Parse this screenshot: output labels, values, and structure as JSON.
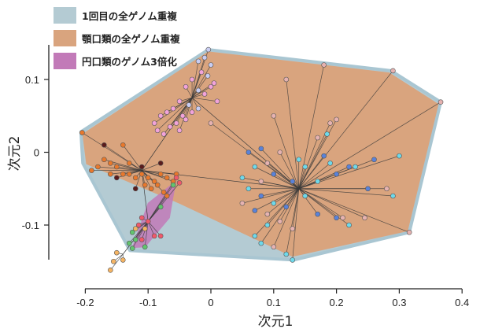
{
  "chart_data": {
    "type": "scatter",
    "xlabel": "次元1",
    "ylabel": "次元2",
    "xlim": [
      -0.2,
      0.4
    ],
    "ylim": [
      -0.15,
      0.15
    ],
    "xticks": [
      "-0.2",
      "-0.1",
      "0",
      "0.1",
      "0.2",
      "0.3",
      "0.4"
    ],
    "xtick_values": [
      -0.2,
      -0.1,
      0,
      0.1,
      0.2,
      0.3,
      0.4
    ],
    "yticks": [
      "0.1",
      "0",
      "-0.1"
    ],
    "ytick_values": [
      0.1,
      0,
      -0.1
    ],
    "grid": false,
    "legend_placement": "top-left",
    "legend": [
      {
        "label": "1回目の全ゲノム重複",
        "color": "#b4cbd3"
      },
      {
        "label": "顎口類の全ゲノム重複",
        "color": "#d9a47e"
      },
      {
        "label": "円口類のゲノム3倍化",
        "color": "#c27ab8"
      }
    ],
    "hulls": [
      {
        "name": "1回目の全ゲノム重複",
        "fill": "#b4cbd3",
        "stroke": "#a9c6d2",
        "vertices": [
          [
            -0.004,
            0.141
          ],
          [
            0.287,
            0.112
          ],
          [
            0.366,
            0.069
          ],
          [
            0.316,
            -0.11
          ],
          [
            0.132,
            -0.148
          ],
          [
            -0.129,
            -0.135
          ],
          [
            -0.204,
            -0.015
          ],
          [
            -0.207,
            0.028
          ]
        ]
      },
      {
        "name": "顎口類の全ゲノム重複",
        "fill": "#d9a47e",
        "stroke": "#d9a47e",
        "vertices": [
          [
            -0.004,
            0.138
          ],
          [
            0.284,
            0.109
          ],
          [
            0.362,
            0.066
          ],
          [
            0.313,
            -0.108
          ],
          [
            0.13,
            -0.143
          ],
          [
            -0.05,
            -0.07
          ],
          [
            -0.198,
            -0.016
          ],
          [
            -0.204,
            0.025
          ]
        ]
      },
      {
        "name": "円口類のゲノム3倍化",
        "fill": "#c27ab8",
        "stroke": "#c27ab8",
        "vertices": [
          [
            -0.056,
            -0.04
          ],
          [
            -0.066,
            -0.09
          ],
          [
            -0.105,
            -0.13
          ],
          [
            -0.125,
            -0.131
          ],
          [
            -0.1,
            -0.07
          ]
        ]
      }
    ],
    "colors": {
      "orange": "#e8782c",
      "maroon": "#5a1c1c",
      "red": "#f0596a",
      "green": "#62c46e",
      "lightorange": "#f5b463",
      "pink": "#f2a3d9",
      "lavender": "#c9cdf2",
      "rose": "#e6b2b0",
      "blue": "#5a82d9",
      "cyan": "#6fd9ea"
    },
    "clusters": [
      {
        "hub": [
          -0.03,
          0.075
        ],
        "points": [
          [
            -0.004,
            0.141,
            "lavender"
          ],
          [
            -0.01,
            0.13,
            "lavender"
          ],
          [
            0.0,
            0.12,
            "lavender"
          ],
          [
            -0.02,
            0.125,
            "lavender"
          ],
          [
            -0.005,
            0.105,
            "lavender"
          ],
          [
            0.005,
            0.095,
            "pink"
          ],
          [
            -0.015,
            0.11,
            "pink"
          ],
          [
            -0.03,
            0.1,
            "pink"
          ],
          [
            -0.04,
            0.09,
            "pink"
          ],
          [
            -0.02,
            0.085,
            "lavender"
          ],
          [
            -0.01,
            0.08,
            "pink"
          ],
          [
            -0.05,
            0.07,
            "pink"
          ],
          [
            -0.06,
            0.06,
            "pink"
          ],
          [
            -0.07,
            0.055,
            "pink"
          ],
          [
            -0.08,
            0.05,
            "pink"
          ],
          [
            -0.09,
            0.04,
            "pink"
          ],
          [
            -0.085,
            0.03,
            "pink"
          ],
          [
            -0.065,
            0.035,
            "pink"
          ],
          [
            -0.05,
            0.03,
            "pink"
          ],
          [
            -0.04,
            0.045,
            "pink"
          ],
          [
            -0.03,
            0.055,
            "pink"
          ],
          [
            0.01,
            0.07,
            "pink"
          ],
          [
            -0.055,
            0.04,
            "pink"
          ],
          [
            -0.075,
            0.025,
            "pink"
          ],
          [
            -0.02,
            0.06,
            "lavender"
          ],
          [
            -0.035,
            0.065,
            "lavender"
          ],
          [
            0.0,
            0.09,
            "pink"
          ],
          [
            -0.045,
            0.05,
            "pink"
          ]
        ]
      },
      {
        "hub": [
          -0.11,
          -0.025
        ],
        "points": [
          [
            -0.205,
            0.027,
            "orange"
          ],
          [
            -0.17,
            0.01,
            "maroon"
          ],
          [
            -0.17,
            -0.01,
            "orange"
          ],
          [
            -0.18,
            -0.02,
            "orange"
          ],
          [
            -0.19,
            -0.025,
            "orange"
          ],
          [
            -0.16,
            -0.015,
            "orange"
          ],
          [
            -0.15,
            -0.02,
            "orange"
          ],
          [
            -0.14,
            -0.03,
            "orange"
          ],
          [
            -0.13,
            -0.03,
            "orange"
          ],
          [
            -0.12,
            -0.035,
            "orange"
          ],
          [
            -0.11,
            -0.03,
            "orange"
          ],
          [
            -0.1,
            -0.035,
            "orange"
          ],
          [
            -0.09,
            -0.04,
            "orange"
          ],
          [
            -0.08,
            -0.03,
            "orange"
          ],
          [
            -0.07,
            -0.035,
            "orange"
          ],
          [
            -0.06,
            -0.04,
            "orange"
          ],
          [
            -0.055,
            -0.03,
            "orange"
          ],
          [
            -0.085,
            -0.045,
            "orange"
          ],
          [
            -0.095,
            -0.05,
            "orange"
          ],
          [
            -0.105,
            -0.045,
            "orange"
          ],
          [
            -0.15,
            -0.035,
            "maroon"
          ],
          [
            -0.11,
            -0.02,
            "maroon"
          ],
          [
            -0.08,
            -0.015,
            "maroon"
          ],
          [
            -0.14,
            0.01,
            "orange"
          ],
          [
            -0.12,
            -0.05,
            "maroon"
          ],
          [
            -0.13,
            -0.015,
            "orange"
          ],
          [
            -0.075,
            -0.055,
            "orange"
          ],
          [
            -0.16,
            -0.03,
            "orange"
          ]
        ]
      },
      {
        "hub": [
          -0.1,
          -0.095
        ],
        "points": [
          [
            -0.055,
            -0.035,
            "red"
          ],
          [
            -0.05,
            -0.042,
            "red"
          ],
          [
            -0.06,
            -0.045,
            "green"
          ],
          [
            -0.07,
            -0.06,
            "orange"
          ],
          [
            -0.08,
            -0.075,
            "green"
          ],
          [
            -0.11,
            -0.09,
            "red"
          ],
          [
            -0.1,
            -0.095,
            "red"
          ],
          [
            -0.115,
            -0.1,
            "red"
          ],
          [
            -0.105,
            -0.105,
            "lightorange"
          ],
          [
            -0.12,
            -0.105,
            "lightorange"
          ],
          [
            -0.125,
            -0.11,
            "green"
          ],
          [
            -0.12,
            -0.12,
            "green"
          ],
          [
            -0.13,
            -0.125,
            "green"
          ],
          [
            -0.11,
            -0.12,
            "red"
          ],
          [
            -0.09,
            -0.115,
            "red"
          ],
          [
            -0.08,
            -0.115,
            "red"
          ],
          [
            -0.105,
            -0.13,
            "green"
          ],
          [
            -0.125,
            -0.132,
            "green"
          ]
        ]
      },
      {
        "hub": [
          -0.14,
          -0.14
        ],
        "points": [
          [
            -0.15,
            -0.138,
            "lightorange"
          ],
          [
            -0.155,
            -0.15,
            "lightorange"
          ],
          [
            -0.14,
            -0.148,
            "lightorange"
          ],
          [
            -0.16,
            -0.162,
            "lightorange"
          ]
        ]
      },
      {
        "hub": [
          0.14,
          -0.05
        ],
        "points": [
          [
            0.1,
            0.05,
            "rose"
          ],
          [
            0.0,
            0.04,
            "rose"
          ],
          [
            0.18,
            0.12,
            "rose"
          ],
          [
            0.12,
            0.1,
            "rose"
          ],
          [
            0.29,
            0.112,
            "rose"
          ],
          [
            0.366,
            0.069,
            "rose"
          ],
          [
            0.19,
            0.04,
            "rose"
          ],
          [
            0.2,
            0.045,
            "rose"
          ],
          [
            0.17,
            0.02,
            "rose"
          ],
          [
            0.11,
            0.0,
            "rose"
          ],
          [
            0.06,
            0.0,
            "blue"
          ],
          [
            0.08,
            0.005,
            "blue"
          ],
          [
            0.07,
            -0.02,
            "cyan"
          ],
          [
            0.09,
            -0.015,
            "rose"
          ],
          [
            0.1,
            -0.03,
            "blue"
          ],
          [
            0.05,
            -0.035,
            "cyan"
          ],
          [
            0.05,
            -0.07,
            "rose"
          ],
          [
            0.08,
            -0.06,
            "blue"
          ],
          [
            0.1,
            -0.07,
            "cyan"
          ],
          [
            0.12,
            -0.075,
            "blue"
          ],
          [
            0.15,
            -0.06,
            "cyan"
          ],
          [
            0.17,
            -0.04,
            "cyan"
          ],
          [
            0.2,
            -0.03,
            "blue"
          ],
          [
            0.22,
            -0.02,
            "blue"
          ],
          [
            0.23,
            -0.02,
            "cyan"
          ],
          [
            0.26,
            -0.01,
            "blue"
          ],
          [
            0.28,
            -0.05,
            "rose"
          ],
          [
            0.29,
            -0.06,
            "cyan"
          ],
          [
            0.25,
            -0.05,
            "blue"
          ],
          [
            0.2,
            -0.09,
            "blue"
          ],
          [
            0.22,
            -0.1,
            "cyan"
          ],
          [
            0.21,
            -0.09,
            "rose"
          ],
          [
            0.17,
            -0.085,
            "blue"
          ],
          [
            0.09,
            -0.1,
            "cyan"
          ],
          [
            0.07,
            -0.115,
            "cyan"
          ],
          [
            0.08,
            -0.125,
            "cyan"
          ],
          [
            0.11,
            -0.095,
            "rose"
          ],
          [
            0.1,
            -0.13,
            "rose"
          ],
          [
            0.13,
            -0.148,
            "cyan"
          ],
          [
            0.12,
            -0.14,
            "cyan"
          ],
          [
            0.245,
            -0.09,
            "rose"
          ],
          [
            0.316,
            -0.11,
            "rose"
          ],
          [
            0.3,
            -0.005,
            "cyan"
          ],
          [
            0.185,
            0.025,
            "cyan"
          ],
          [
            0.14,
            -0.01,
            "cyan"
          ],
          [
            0.15,
            -0.02,
            "cyan"
          ],
          [
            0.18,
            -0.005,
            "blue"
          ],
          [
            0.13,
            -0.04,
            "blue"
          ],
          [
            0.06,
            -0.05,
            "cyan"
          ],
          [
            0.07,
            -0.08,
            "blue"
          ],
          [
            0.09,
            -0.085,
            "rose"
          ],
          [
            0.13,
            -0.105,
            "rose"
          ],
          [
            0.19,
            -0.015,
            "cyan"
          ],
          [
            0.08,
            -0.04,
            "rose"
          ]
        ]
      }
    ]
  }
}
